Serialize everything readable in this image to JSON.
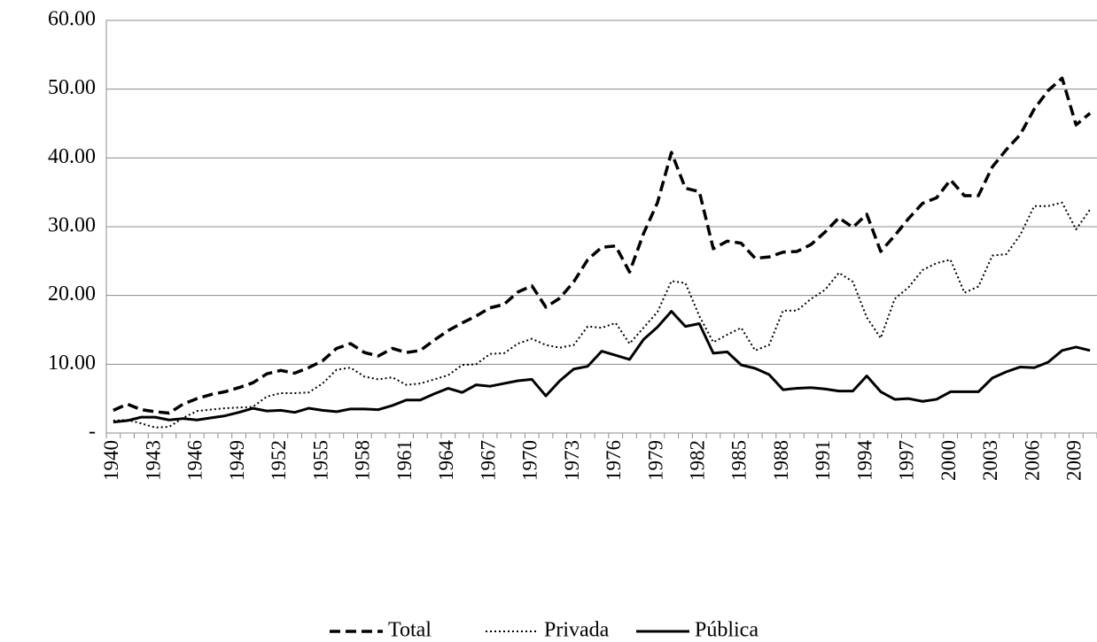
{
  "chart_data": {
    "type": "line",
    "categories": [
      "1940",
      null,
      null,
      "1943",
      null,
      null,
      "1946",
      null,
      null,
      "1949",
      null,
      null,
      "1952",
      null,
      null,
      "1955",
      null,
      null,
      "1958",
      null,
      null,
      "1961",
      null,
      null,
      "1964",
      null,
      null,
      "1967",
      null,
      null,
      "1970",
      null,
      null,
      "1973",
      null,
      null,
      "1976",
      null,
      null,
      "1979",
      null,
      null,
      "1982",
      null,
      null,
      "1985",
      null,
      null,
      "1988",
      null,
      null,
      "1991",
      null,
      null,
      "1994",
      null,
      null,
      "1997",
      null,
      null,
      "2000",
      null,
      null,
      "2003",
      null,
      null,
      "2006",
      null,
      null,
      "2009",
      null
    ],
    "series": [
      {
        "name": "Total",
        "color": "#000000",
        "dash": "dashed",
        "values": [
          3.3,
          4.2,
          3.4,
          3.1,
          2.9,
          4.2,
          5.0,
          5.6,
          6.0,
          6.6,
          7.3,
          8.6,
          9.1,
          8.7,
          9.5,
          10.5,
          12.3,
          13.0,
          11.7,
          11.2,
          12.3,
          11.7,
          12.0,
          13.5,
          14.9,
          16.0,
          17.0,
          18.2,
          18.7,
          20.5,
          21.4,
          18.3,
          19.6,
          22.0,
          25.2,
          27.0,
          27.2,
          23.4,
          29.0,
          33.5,
          40.8,
          35.6,
          35.1,
          26.8,
          27.9,
          27.6,
          25.4,
          25.6,
          26.3,
          26.4,
          27.4,
          29.2,
          31.3,
          29.9,
          31.8,
          26.4,
          28.7,
          31.2,
          33.4,
          34.2,
          36.8,
          34.5,
          34.5,
          38.7,
          41.2,
          43.4,
          47.1,
          49.8,
          51.6,
          44.8,
          46.5
        ]
      },
      {
        "name": "Privada",
        "color": "#000000",
        "dash": "dotted",
        "values": [
          1.8,
          1.9,
          1.4,
          0.8,
          0.9,
          2.2,
          3.2,
          3.4,
          3.6,
          3.7,
          3.8,
          5.3,
          5.8,
          5.8,
          5.9,
          7.2,
          9.2,
          9.5,
          8.2,
          7.8,
          8.1,
          7.0,
          7.2,
          7.8,
          8.4,
          9.9,
          10.0,
          11.5,
          11.6,
          13.0,
          13.7,
          12.8,
          12.4,
          12.8,
          15.5,
          15.3,
          16.0,
          13.0,
          15.3,
          17.6,
          22.1,
          21.8,
          17.0,
          13.2,
          14.3,
          15.3,
          12.0,
          12.8,
          17.8,
          17.8,
          19.5,
          20.8,
          23.3,
          22.0,
          16.8,
          13.8,
          19.5,
          21.2,
          23.7,
          24.7,
          25.2,
          20.4,
          21.3,
          25.8,
          26.0,
          28.8,
          33.0,
          33.0,
          33.5,
          29.6,
          32.5
        ]
      },
      {
        "name": "Pública",
        "color": "#000000",
        "dash": "solid",
        "values": [
          1.6,
          1.8,
          2.3,
          2.3,
          1.9,
          2.1,
          1.9,
          2.2,
          2.5,
          3.0,
          3.6,
          3.2,
          3.3,
          3.0,
          3.6,
          3.3,
          3.1,
          3.5,
          3.5,
          3.4,
          4.0,
          4.8,
          4.8,
          5.7,
          6.5,
          5.9,
          7.0,
          6.8,
          7.2,
          7.6,
          7.8,
          5.4,
          7.6,
          9.3,
          9.7,
          11.9,
          11.3,
          10.7,
          13.6,
          15.4,
          17.7,
          15.5,
          15.9,
          11.6,
          11.8,
          9.9,
          9.4,
          8.5,
          6.3,
          6.5,
          6.6,
          6.4,
          6.1,
          6.1,
          8.3,
          6.0,
          4.9,
          5.0,
          4.6,
          4.9,
          6.0,
          6.0,
          6.0,
          8.0,
          8.9,
          9.6,
          9.5,
          10.3,
          12.0,
          12.5,
          12.0
        ]
      }
    ],
    "ylim": [
      0,
      60
    ],
    "yticks": [
      {
        "value": 0,
        "label": "-"
      },
      {
        "value": 10,
        "label": "10.00"
      },
      {
        "value": 20,
        "label": "20.00"
      },
      {
        "value": 30,
        "label": "30.00"
      },
      {
        "value": 40,
        "label": "40.00"
      },
      {
        "value": 50,
        "label": "50.00"
      },
      {
        "value": 60,
        "label": "60.00"
      }
    ],
    "grid": true,
    "legend": "bottom"
  }
}
